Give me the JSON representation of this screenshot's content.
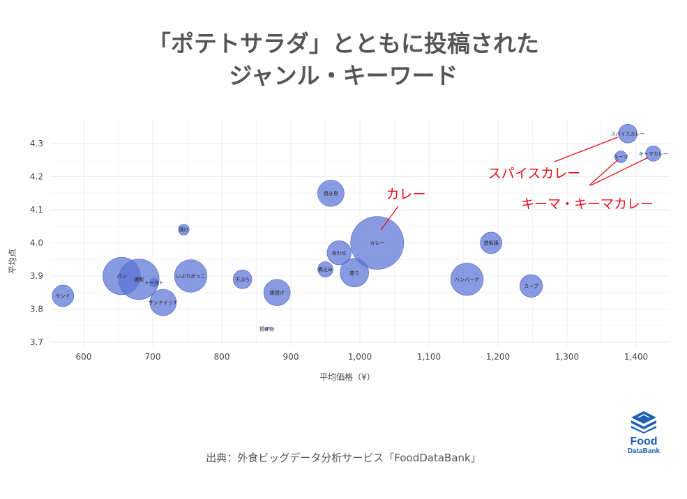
{
  "title_line1": "「ポテトサラダ」とともに投稿された",
  "title_line2": "ジャンル・キーワード",
  "source": "出典：外食ビッグデータ分析サービス「FoodDataBank」",
  "logo": {
    "word1": "Food",
    "word2": "DataBank"
  },
  "colors": {
    "bubble": "#5a73d6",
    "annotation": "#e0111b",
    "title": "#555555"
  },
  "chart_data": {
    "type": "scatter",
    "xlabel": "平均価格（¥）",
    "ylabel": "平均点",
    "xlim": [
      550,
      1450
    ],
    "ylim": [
      3.7,
      4.35
    ],
    "x_ticks": [
      600,
      700,
      800,
      900,
      1000,
      1100,
      1200,
      1300,
      1400
    ],
    "x_tick_labels": [
      "600",
      "700",
      "800",
      "900",
      "1,000",
      "1,100",
      "1,200",
      "1,300",
      "1,400"
    ],
    "y_ticks": [
      3.7,
      3.8,
      3.9,
      4.0,
      4.1,
      4.2,
      4.3
    ],
    "y_tick_labels": [
      "3.7",
      "3.8",
      "3.9",
      "4.0",
      "4.1",
      "4.2",
      "4.3"
    ],
    "grid": true,
    "points": [
      {
        "label": "サンド",
        "x": 570,
        "y": 3.84,
        "size": 2
      },
      {
        "label": "パン",
        "x": 655,
        "y": 3.9,
        "size": 6
      },
      {
        "label": "燻製",
        "x": 680,
        "y": 3.89,
        "size": 7
      },
      {
        "label": "トースト",
        "x": 702,
        "y": 3.88,
        "size": 0.3
      },
      {
        "label": "サンドイッチ",
        "x": 715,
        "y": 3.82,
        "size": 3
      },
      {
        "label": "漬け",
        "x": 745,
        "y": 4.04,
        "size": 0.5
      },
      {
        "label": "いぶりがっこ",
        "x": 755,
        "y": 3.9,
        "size": 4.5
      },
      {
        "label": "天ぷら",
        "x": 830,
        "y": 3.89,
        "size": 1.5
      },
      {
        "label": "揚げ物",
        "x": 865,
        "y": 3.74,
        "size": 0.05
      },
      {
        "label": "唐揚げ",
        "x": 880,
        "y": 3.85,
        "size": 3
      },
      {
        "label": "煮込み",
        "x": 950,
        "y": 3.92,
        "size": 1
      },
      {
        "label": "焼き鳥",
        "x": 958,
        "y": 4.15,
        "size": 3
      },
      {
        "label": "合わせ",
        "x": 970,
        "y": 3.97,
        "size": 2.5
      },
      {
        "label": "盛り",
        "x": 992,
        "y": 3.91,
        "size": 3.5
      },
      {
        "label": "カレー",
        "x": 1025,
        "y": 4.0,
        "size": 12
      },
      {
        "label": "ハンバーグ",
        "x": 1155,
        "y": 3.89,
        "size": 4.5
      },
      {
        "label": "鉄板焼",
        "x": 1190,
        "y": 4.0,
        "size": 2
      },
      {
        "label": "スープ",
        "x": 1248,
        "y": 3.87,
        "size": 2.2
      },
      {
        "label": "キーマ",
        "x": 1378,
        "y": 4.26,
        "size": 0.6
      },
      {
        "label": "スパイスカレー",
        "x": 1388,
        "y": 4.33,
        "size": 1.5
      },
      {
        "label": "キーマカレー",
        "x": 1425,
        "y": 4.27,
        "size": 1
      }
    ],
    "annotations": [
      {
        "text": "カレー"
      },
      {
        "text": "スパイスカレー"
      },
      {
        "text": "キーマ・キーマカレー"
      }
    ]
  }
}
